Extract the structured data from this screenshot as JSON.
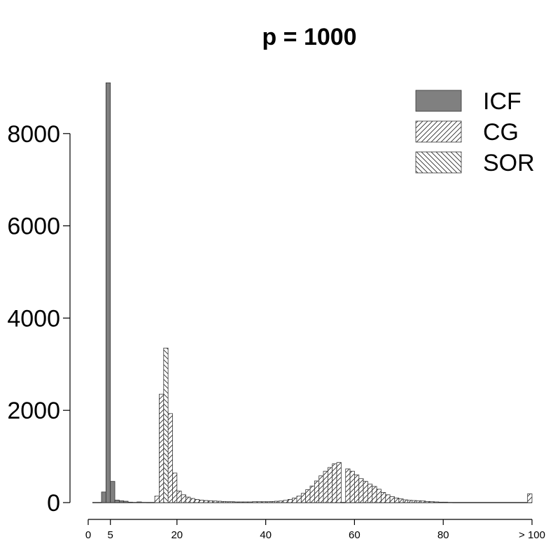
{
  "chart_data": {
    "type": "bar",
    "title": "p = 1000",
    "xlabel": "",
    "ylabel": "",
    "bin_width": 1,
    "xlim": [
      0,
      100
    ],
    "ylim": [
      0,
      9000
    ],
    "y_ticks": [
      0,
      2000,
      4000,
      6000,
      8000
    ],
    "x_ticks": [
      {
        "value": 0,
        "label": "0"
      },
      {
        "value": 5,
        "label": "5"
      },
      {
        "value": 20,
        "label": "20"
      },
      {
        "value": 40,
        "label": "40"
      },
      {
        "value": 60,
        "label": "60"
      },
      {
        "value": 80,
        "label": "80"
      },
      {
        "value": 100,
        "label": "> 100"
      }
    ],
    "legend_position": "top-right",
    "grid": false,
    "series": [
      {
        "name": "ICF",
        "fill": "#808080",
        "pattern": "solid",
        "x": [
          3,
          4,
          5,
          6,
          7,
          8,
          9,
          10,
          11,
          12
        ],
        "values": [
          230,
          9100,
          460,
          55,
          40,
          30,
          10,
          5,
          15,
          5
        ]
      },
      {
        "name": "CG",
        "fill": "#ffffff",
        "pattern": "forward-hatch",
        "x": [
          15,
          16,
          18,
          19,
          20,
          21,
          22,
          23,
          24,
          25,
          26,
          27,
          28,
          29,
          30,
          31,
          32,
          33,
          34,
          35,
          36,
          37,
          38,
          39,
          40,
          41,
          42,
          43,
          44,
          45,
          46,
          47,
          48,
          49,
          50,
          51,
          52,
          53,
          54,
          55,
          56,
          58,
          59,
          60,
          61,
          62,
          63,
          64,
          65,
          66,
          67,
          68,
          69,
          70,
          71,
          72,
          73,
          74,
          75,
          76,
          77,
          78,
          79,
          80,
          81,
          99
        ],
        "values": [
          140,
          2350,
          1930,
          640,
          250,
          170,
          120,
          90,
          70,
          55,
          45,
          40,
          35,
          30,
          25,
          20,
          20,
          15,
          15,
          15,
          15,
          20,
          20,
          20,
          20,
          25,
          30,
          35,
          50,
          70,
          100,
          140,
          200,
          280,
          360,
          470,
          580,
          680,
          760,
          840,
          870,
          730,
          680,
          600,
          520,
          460,
          400,
          350,
          290,
          220,
          170,
          130,
          100,
          80,
          60,
          50,
          45,
          40,
          35,
          25,
          20,
          15,
          10,
          10,
          5,
          190
        ]
      },
      {
        "name": "SOR",
        "fill": "#ffffff",
        "pattern": "back-hatch",
        "x": [
          17
        ],
        "values": [
          3350
        ]
      }
    ]
  }
}
